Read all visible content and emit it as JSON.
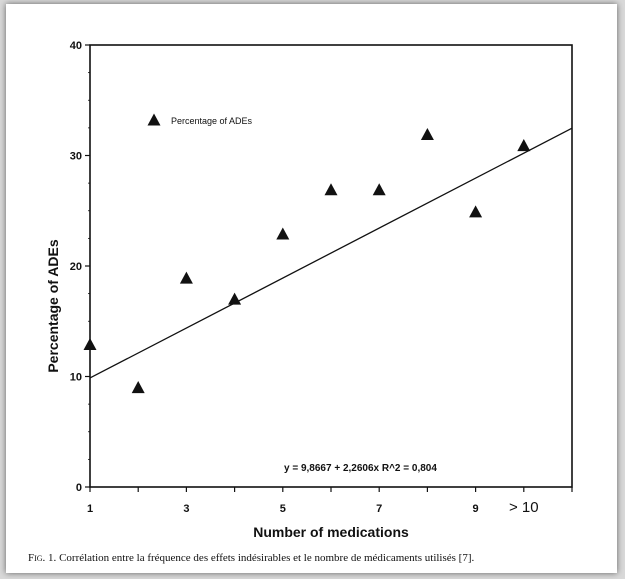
{
  "chart_data": {
    "type": "scatter",
    "title": "",
    "xlabel": "Number of medications",
    "ylabel": "Percentage of ADEs",
    "xlim": [
      1,
      11
    ],
    "ylim": [
      0,
      40
    ],
    "x_ticks": [
      {
        "value": 1,
        "label": "1"
      },
      {
        "value": 3,
        "label": "3"
      },
      {
        "value": 5,
        "label": "5"
      },
      {
        "value": 7,
        "label": "7"
      },
      {
        "value": 9,
        "label": "9"
      },
      {
        "value": 10,
        "label": "> 10"
      }
    ],
    "y_ticks": [
      {
        "value": 0,
        "label": "0"
      },
      {
        "value": 10,
        "label": "10"
      },
      {
        "value": 20,
        "label": "20"
      },
      {
        "value": 30,
        "label": "30"
      },
      {
        "value": 40,
        "label": "40"
      }
    ],
    "series": [
      {
        "name": "Percentage of ADEs",
        "marker": "triangle",
        "points": [
          {
            "x": 1,
            "y": 12.9
          },
          {
            "x": 2,
            "y": 9.0
          },
          {
            "x": 3,
            "y": 18.9
          },
          {
            "x": 4,
            "y": 17.0
          },
          {
            "x": 5,
            "y": 22.9
          },
          {
            "x": 6,
            "y": 26.9
          },
          {
            "x": 7,
            "y": 26.9
          },
          {
            "x": 8,
            "y": 31.9
          },
          {
            "x": 9,
            "y": 24.9
          },
          {
            "x": 10,
            "y": 30.9
          }
        ]
      }
    ],
    "trendline": {
      "intercept": 9.8667,
      "slope": 2.2606,
      "x_from": 1,
      "x_to": 11,
      "equation_label": "y = 9,8667 + 2,2606x   R^2 = 0,804"
    },
    "legend": {
      "label": "Percentage of ADEs",
      "position": "top-left"
    },
    "grid": false
  },
  "caption": {
    "fig_label": "Fig. 1.",
    "text": " Corrélation entre la fréquence des effets indésirables et le nombre de médicaments utilisés [7]."
  },
  "colors": {
    "ink": "#111111",
    "background": "#ffffff"
  }
}
